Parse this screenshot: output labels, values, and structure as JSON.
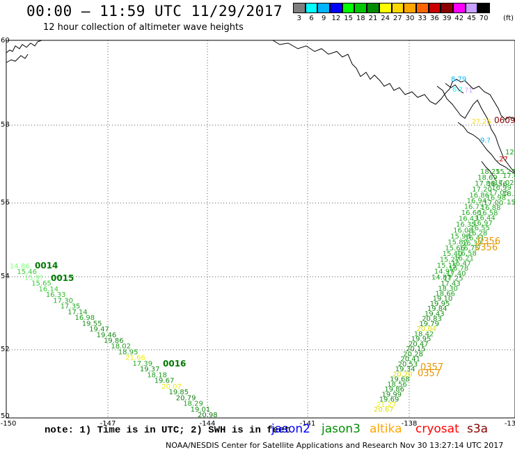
{
  "title": "00:00 – 11:59 UTC 11/29/2017",
  "subtitle": "12 hour collection of altimeter wave heights",
  "legend": {
    "unit": "(ft)",
    "colors": [
      "#7f7f7f",
      "#00ffff",
      "#00b4ff",
      "#0000ff",
      "#00ff00",
      "#00c800",
      "#008c00",
      "#ffff00",
      "#ffd700",
      "#ffa500",
      "#ff6400",
      "#c80000",
      "#8b0000",
      "#ff00ff",
      "#c8a0ff",
      "#000000"
    ],
    "labels": [
      "3",
      "6",
      "9",
      "12",
      "15",
      "18",
      "21",
      "24",
      "27",
      "30",
      "33",
      "36",
      "39",
      "42",
      "45",
      "70"
    ]
  },
  "axes": {
    "lon_ticks": [
      "-150",
      "-147",
      "-144",
      "-141",
      "-138",
      "-13"
    ],
    "lat_ticks": [
      "60",
      "58",
      "56",
      "54",
      "52",
      "50"
    ]
  },
  "tracks": [
    {
      "labels": [
        {
          "t": "14.86",
          "c": "#7fff7f"
        },
        {
          "t": "15.46",
          "c": "#33cc33"
        },
        {
          "t": "15.9?",
          "c": "#7fff7f"
        },
        {
          "t": "15.65",
          "c": "#33cc33"
        },
        {
          "t": "16.14",
          "c": "#33cc33"
        },
        {
          "t": "16.33",
          "c": "#2db82d"
        },
        {
          "t": "17.30",
          "c": "#22aa22"
        },
        {
          "t": "17.35",
          "c": "#22aa22"
        },
        {
          "t": "17.14",
          "c": "#1e9e1e"
        },
        {
          "t": "16.98",
          "c": "#1e9e1e"
        },
        {
          "t": "19.55",
          "c": "#148c14"
        },
        {
          "t": "19.47",
          "c": "#148c14"
        },
        {
          "t": "19.46",
          "c": "#148c14"
        },
        {
          "t": "19.86",
          "c": "#148c14"
        },
        {
          "t": "18.02",
          "c": "#1e9e1e"
        },
        {
          "t": "18.95",
          "c": "#1e9e1e"
        },
        {
          "t": "21.66",
          "c": "#eeee00"
        },
        {
          "t": "17.39",
          "c": "#22aa22"
        },
        {
          "t": "19.37",
          "c": "#148c14"
        },
        {
          "t": "18.18",
          "c": "#1e9e1e"
        },
        {
          "t": "19.67",
          "c": "#148c14"
        },
        {
          "t": "20.07",
          "c": "#eeee00"
        },
        {
          "t": "19.85",
          "c": "#148c14"
        },
        {
          "t": "20.79",
          "c": "#117a11"
        },
        {
          "t": "18.29",
          "c": "#1e9e1e"
        },
        {
          "t": "19.01",
          "c": "#148c14"
        },
        {
          "t": "20.98",
          "c": "#117a11"
        }
      ],
      "times": [
        {
          "t": "0014",
          "c": "#007a00"
        },
        {
          "t": "0015",
          "c": "#007a00"
        },
        {
          "t": "0016",
          "c": "#007a00"
        }
      ]
    },
    {
      "labels": [
        {
          "t": "20.67",
          "c": "#dddd00"
        },
        {
          "t": "21.27",
          "c": "#eeee00"
        },
        {
          "t": "19.69",
          "c": "#148c14"
        },
        {
          "t": "19.99",
          "c": "#148c14"
        },
        {
          "t": "19.86",
          "c": "#148c14"
        },
        {
          "t": "18.56",
          "c": "#1e9e1e"
        },
        {
          "t": "19.68",
          "c": "#148c14"
        },
        {
          "t": "20.20",
          "c": "#dddd00"
        },
        {
          "t": "19.34",
          "c": "#148c14"
        },
        {
          "t": "20.53",
          "c": "#148c14"
        },
        {
          "t": "20.41",
          "c": "#148c14"
        },
        {
          "t": "20.28",
          "c": "#148c14"
        },
        {
          "t": "20.15",
          "c": "#148c14"
        },
        {
          "t": "20.47",
          "c": "#148c14"
        },
        {
          "t": "19.95",
          "c": "#148c14"
        },
        {
          "t": "18.42",
          "c": "#1e9e1e"
        },
        {
          "t": "20.04",
          "c": "#dddd00"
        },
        {
          "t": "19.79",
          "c": "#148c14"
        },
        {
          "t": "20.83",
          "c": "#148c14"
        },
        {
          "t": "19.43",
          "c": "#148c14"
        },
        {
          "t": "19.84",
          "c": "#148c14"
        },
        {
          "t": "19.95",
          "c": "#148c14"
        },
        {
          "t": "19.10",
          "c": "#148c14"
        },
        {
          "t": "18.66",
          "c": "#1e9e1e"
        },
        {
          "t": "18.30",
          "c": "#1e9e1e"
        },
        {
          "t": "17.43",
          "c": "#1e9e1e"
        },
        {
          "t": "17.25",
          "c": "#1e9e1e"
        },
        {
          "t": "17.40",
          "c": "#1e9e1e"
        },
        {
          "t": "16.78",
          "c": "#22aa22"
        },
        {
          "t": "16.47",
          "c": "#22aa22"
        },
        {
          "t": "16.21",
          "c": "#22aa22"
        },
        {
          "t": "16.58",
          "c": "#22aa22"
        },
        {
          "t": "16.75",
          "c": "#22aa22"
        },
        {
          "t": "16.32",
          "c": "#22aa22"
        },
        {
          "t": "16.41",
          "c": "#22aa22"
        },
        {
          "t": "16.28",
          "c": "#22aa22"
        },
        {
          "t": "16.55",
          "c": "#22aa22"
        },
        {
          "t": "16.97",
          "c": "#22aa22"
        },
        {
          "t": "16.44",
          "c": "#22aa22"
        },
        {
          "t": "16.58",
          "c": "#22aa22"
        },
        {
          "t": "16.88",
          "c": "#22aa22"
        },
        {
          "t": "17.00",
          "c": "#1e9e1e"
        },
        {
          "t": "16.98",
          "c": "#22aa22"
        },
        {
          "t": "17.05",
          "c": "#1e9e1e"
        },
        {
          "t": "16.99",
          "c": "#22aa22"
        },
        {
          "t": "17.02",
          "c": "#1e9e1e"
        }
      ],
      "times": [
        {
          "t": "0357",
          "c": "#e69500"
        },
        {
          "t": "0357",
          "c": "#e69500"
        }
      ]
    },
    {
      "labels": [
        {
          "t": "18.25",
          "c": "#1e9e1e"
        },
        {
          "t": "18.69",
          "c": "#1e9e1e"
        },
        {
          "t": "17.86",
          "c": "#1e9e1e"
        },
        {
          "t": "17.20",
          "c": "#1e9e1e"
        },
        {
          "t": "16.86",
          "c": "#22aa22"
        },
        {
          "t": "16.94",
          "c": "#22aa22"
        },
        {
          "t": "16.73",
          "c": "#22aa22"
        },
        {
          "t": "16.66",
          "c": "#22aa22"
        },
        {
          "t": "16.43",
          "c": "#22aa22"
        },
        {
          "t": "16.35",
          "c": "#22aa22"
        },
        {
          "t": "16.08",
          "c": "#22aa22"
        },
        {
          "t": "15.98",
          "c": "#22aa22"
        },
        {
          "t": "15.82",
          "c": "#22aa22"
        },
        {
          "t": "15.66",
          "c": "#22aa22"
        },
        {
          "t": "15.40",
          "c": "#22aa22"
        },
        {
          "t": "15.27",
          "c": "#22aa22"
        },
        {
          "t": "15.15",
          "c": "#22aa22"
        },
        {
          "t": "14.97",
          "c": "#22aa22"
        },
        {
          "t": "14.87",
          "c": "#22aa22"
        }
      ],
      "times": [
        {
          "t": "0356",
          "c": "#e69500"
        },
        {
          "t": "0356",
          "c": "#e69500"
        }
      ]
    }
  ],
  "east_labels": [
    {
      "t": "15.27",
      "c": "#22aa22"
    },
    {
      "t": "18.56",
      "c": "#1e9e1e"
    },
    {
      "t": "17.69",
      "c": "#1e9e1e"
    },
    {
      "t": "18.3",
      "c": "#1e9e1e"
    },
    {
      "t": "15",
      "c": "#22aa22"
    },
    {
      "t": "12",
      "c": "#00aa00"
    }
  ],
  "coast_labels": [
    {
      "t": "8.79",
      "c": "#00b4ff"
    },
    {
      "t": "6.?",
      "c": "#00ffff"
    },
    {
      "t": "?1",
      "c": "#c8a0ff"
    },
    {
      "t": "2?.26",
      "c": "#ffd700"
    },
    {
      "t": "9.?",
      "c": "#00b4ff"
    },
    {
      "t": ".27",
      "c": "#c80000"
    },
    {
      "t": "0609",
      "c": "#8b0000"
    }
  ],
  "note": "note: 1) Time is in UTC; 2) SWH is in feet",
  "satellites": [
    {
      "name": "jason2",
      "color": "#0000ff"
    },
    {
      "name": "jason3",
      "color": "#008c00"
    },
    {
      "name": "altika",
      "color": "#ffa500"
    },
    {
      "name": "cryosat",
      "color": "#ff0000"
    },
    {
      "name": "s3a",
      "color": "#8b0000"
    }
  ],
  "credit": "NOAA/NESDIS Center for Satellite Applications and Research     Nov 30 13:27:14 UTC 2017"
}
